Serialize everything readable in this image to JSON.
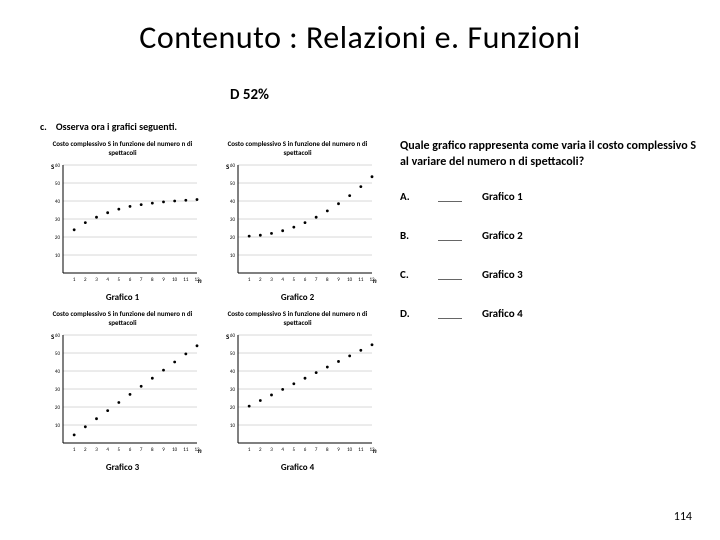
{
  "title": "Contenuto : Relazioni e. Funzioni",
  "subtitle": "D 52%",
  "instruction_prefix": "c.",
  "instruction": "Osserva ora i grafici seguenti.",
  "question": "Quale grafico rappresenta come varia il costo complessivo S al variare del numero n di spettacoli?",
  "options": [
    {
      "letter": "A.",
      "label": "Grafico 1"
    },
    {
      "letter": "B.",
      "label": "Grafico 2"
    },
    {
      "letter": "C.",
      "label": "Grafico 3"
    },
    {
      "letter": "D.",
      "label": "Grafico 4"
    }
  ],
  "page_number": "114",
  "charts_common": {
    "chart_title": "Costo complessivo S in funzione del numero n di spettacoli",
    "x_axis_label": "n",
    "y_axis_label": "S",
    "x_ticks": [
      1,
      2,
      3,
      4,
      5,
      6,
      7,
      8,
      9,
      10,
      11,
      12
    ],
    "y_ticks": [
      10,
      20,
      30,
      40,
      50,
      60
    ],
    "y_max": 60,
    "x_max": 12,
    "grid_color": "#b0b0b0",
    "axis_color": "#000000",
    "point_color": "#000000",
    "point_radius": 1.4,
    "background": "#ffffff",
    "tick_fontsize": 5
  },
  "charts": [
    {
      "caption": "Grafico 1",
      "points_y": [
        24,
        28,
        31,
        33.5,
        35.5,
        37,
        38,
        38.8,
        39.5,
        40,
        40.4,
        40.8
      ]
    },
    {
      "caption": "Grafico 2",
      "points_y": [
        20.5,
        21,
        22,
        23.5,
        25.5,
        28,
        31,
        34.5,
        38.5,
        43,
        48,
        53.5
      ]
    },
    {
      "caption": "Grafico 3",
      "points_y": [
        4.5,
        9,
        13.5,
        18,
        22.5,
        27,
        31.5,
        36,
        40.5,
        45,
        49.5,
        54
      ]
    },
    {
      "caption": "Grafico 4",
      "points_y": [
        20.5,
        23.6,
        26.7,
        29.8,
        32.9,
        36,
        39.1,
        42.2,
        45.3,
        48.4,
        51.5,
        54.6
      ]
    }
  ]
}
